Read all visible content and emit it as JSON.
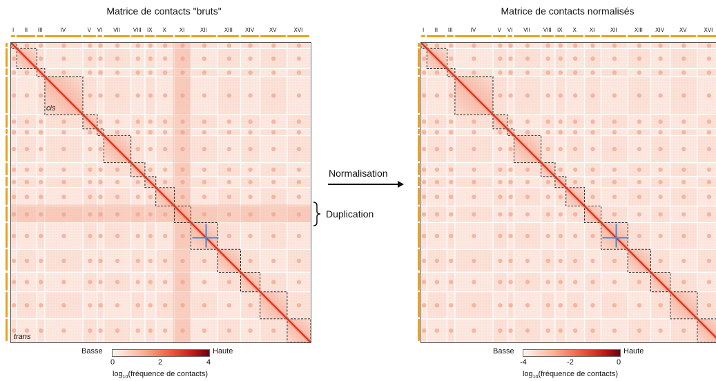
{
  "left_panel": {
    "title": "Matrice de contacts \"bruts\"",
    "cis_label": "cis",
    "trans_label": "trans",
    "legend": {
      "low": "Basse",
      "high": "Haute",
      "ticks": [
        "0",
        "2",
        "4"
      ]
    }
  },
  "right_panel": {
    "title": "Matrice de contacts normalisés",
    "legend": {
      "low": "Basse",
      "high": "Haute",
      "ticks": [
        "-4",
        "-2",
        "0"
      ]
    }
  },
  "axis_caption": {
    "prefix": "log",
    "subscript": "10",
    "suffix": "(fréquence de contacts)"
  },
  "chromosomes": [
    "I",
    "II",
    "III",
    "IV",
    "V",
    "VI",
    "VII",
    "VIII",
    "IX",
    "X",
    "XI",
    "XII",
    "XIII",
    "XIV",
    "XV",
    "XVI"
  ],
  "chromosome_sizes_kb": [
    230,
    813,
    317,
    1532,
    577,
    270,
    1091,
    563,
    440,
    746,
    667,
    1078,
    924,
    784,
    1091,
    948
  ],
  "normalisation_label": "Normalisation",
  "duplication_label": "Duplication",
  "colors": {
    "chromosome_bar": "#e8a11c",
    "diagonal": "#d7301f",
    "highlight": "#3a8de0",
    "box_border": "#222222"
  }
}
